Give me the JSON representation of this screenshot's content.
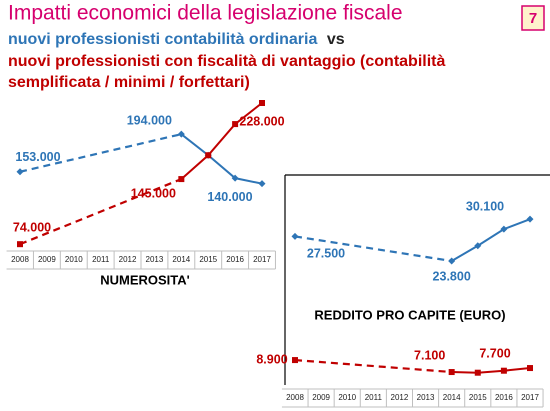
{
  "header": {
    "title": "Impatti economici della legislazione fiscale",
    "page_number": "7",
    "subtitle_line1": "nuovi professionisti contabilità ordinaria",
    "vs": "vs",
    "subtitle_line2": "nuovi professionisti con fiscalità di vantaggio (contabilità",
    "subtitle_line3": "semplificata / minimi / forfettari)"
  },
  "chart_data": [
    {
      "type": "line",
      "title": "NUMEROSITA'",
      "categories": [
        "2008",
        "2009",
        "2010",
        "2011",
        "2012",
        "2013",
        "2014",
        "2015",
        "2016",
        "2017"
      ],
      "ylim": [
        60000,
        240000
      ],
      "series": [
        {
          "color": "#2e75b6",
          "marker": "diamond",
          "values": [
            153000,
            null,
            null,
            null,
            null,
            null,
            194000,
            171000,
            146000,
            140000
          ],
          "value_labels": [
            "153.000",
            null,
            null,
            null,
            null,
            null,
            "194.000",
            null,
            null,
            "140.000"
          ]
        },
        {
          "color": "#c00000",
          "marker": "square",
          "values": [
            74000,
            null,
            null,
            null,
            null,
            null,
            145000,
            171000,
            205000,
            228000
          ],
          "value_labels": [
            "74.000",
            null,
            null,
            null,
            null,
            null,
            "145.000",
            null,
            null,
            "228.000"
          ]
        }
      ]
    },
    {
      "type": "line",
      "title": "REDDITO PRO CAPITE (EURO)",
      "categories": [
        "2008",
        "2009",
        "2010",
        "2011",
        "2012",
        "2013",
        "2014",
        "2015",
        "2016",
        "2017"
      ],
      "ylim": [
        5000,
        32000
      ],
      "series": [
        {
          "color": "#2e75b6",
          "marker": "diamond",
          "values": [
            27500,
            null,
            null,
            null,
            null,
            null,
            23800,
            26100,
            28600,
            30100
          ],
          "value_labels": [
            "27.500",
            null,
            null,
            null,
            null,
            null,
            "23.800",
            null,
            null,
            "30.100"
          ]
        },
        {
          "color": "#c00000",
          "marker": "square",
          "values": [
            8900,
            null,
            null,
            null,
            null,
            null,
            7100,
            7000,
            7300,
            7700
          ],
          "value_labels": [
            "8.900",
            null,
            null,
            null,
            null,
            null,
            "7.100",
            null,
            null,
            "7.700"
          ]
        }
      ]
    }
  ]
}
